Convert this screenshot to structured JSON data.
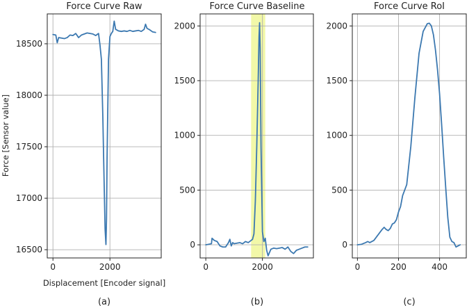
{
  "chart_data": [
    {
      "type": "line",
      "title": "Force Curve Raw",
      "xlabel": "Displacement [Encoder signal]",
      "ylabel": "Force [Sensor value]",
      "caption": "(a)",
      "xlim": [
        -200,
        3800
      ],
      "ylim": [
        16420,
        18790
      ],
      "xticks": [
        0,
        2000
      ],
      "yticks": [
        16500,
        17000,
        17500,
        18000,
        18500
      ],
      "grid": true,
      "series": [
        {
          "color": "#3b78b0",
          "x": [
            0,
            100,
            150,
            200,
            300,
            400,
            500,
            600,
            700,
            800,
            900,
            1000,
            1100,
            1200,
            1300,
            1400,
            1500,
            1600,
            1650,
            1700,
            1750,
            1800,
            1830,
            1860,
            1880,
            1900,
            1950,
            2000,
            2050,
            2100,
            2150,
            2200,
            2300,
            2400,
            2500,
            2600,
            2700,
            2800,
            2900,
            3000,
            3100,
            3200,
            3250,
            3300,
            3400,
            3500,
            3600
          ],
          "y": [
            18590,
            18585,
            18510,
            18560,
            18555,
            18550,
            18560,
            18585,
            18580,
            18600,
            18560,
            18585,
            18595,
            18605,
            18600,
            18595,
            18580,
            18600,
            18490,
            18350,
            17800,
            17100,
            16700,
            16550,
            16800,
            17400,
            18350,
            18570,
            18600,
            18620,
            18720,
            18640,
            18625,
            18620,
            18625,
            18620,
            18630,
            18620,
            18625,
            18630,
            18620,
            18640,
            18690,
            18650,
            18635,
            18615,
            18610
          ]
        }
      ]
    },
    {
      "type": "line",
      "title": "Force Curve Baseline",
      "caption": "(b)",
      "xlim": [
        -200,
        3800
      ],
      "ylim": [
        -120,
        2110
      ],
      "xticks": [
        0,
        2000
      ],
      "yticks": [
        0,
        500,
        1000,
        1500,
        2000
      ],
      "grid": true,
      "highlight_range": [
        1600,
        2100
      ],
      "highlight_color": "#f1f79e",
      "series": [
        {
          "color": "#3b78b0",
          "x": [
            0,
            100,
            200,
            220,
            300,
            400,
            500,
            600,
            700,
            800,
            850,
            900,
            950,
            1000,
            1100,
            1200,
            1300,
            1400,
            1500,
            1600,
            1650,
            1700,
            1750,
            1800,
            1850,
            1880,
            1900,
            1920,
            1950,
            2000,
            2050,
            2100,
            2150,
            2200,
            2300,
            2400,
            2500,
            2600,
            2700,
            2800,
            2900,
            3000,
            3100,
            3200,
            3300,
            3400,
            3500,
            3600
          ],
          "y": [
            0,
            5,
            10,
            60,
            40,
            30,
            -10,
            -20,
            -20,
            20,
            50,
            -10,
            20,
            10,
            15,
            20,
            10,
            30,
            20,
            40,
            50,
            100,
            400,
            900,
            1500,
            1900,
            2030,
            1800,
            900,
            120,
            30,
            60,
            -50,
            -100,
            -40,
            -30,
            -35,
            -30,
            -25,
            -40,
            -20,
            -60,
            -80,
            -50,
            -40,
            -30,
            -20,
            -20
          ]
        }
      ]
    },
    {
      "type": "line",
      "title": "Force Curve RoI",
      "caption": "(c)",
      "xlim": [
        -25,
        530
      ],
      "ylim": [
        -120,
        2110
      ],
      "xticks": [
        0,
        200,
        400
      ],
      "yticks": [
        0,
        500,
        1000,
        1500,
        2000
      ],
      "grid": true,
      "series": [
        {
          "color": "#3b78b0",
          "x": [
            0,
            20,
            40,
            50,
            60,
            80,
            100,
            120,
            130,
            140,
            150,
            160,
            170,
            180,
            190,
            200,
            210,
            220,
            240,
            260,
            280,
            300,
            320,
            340,
            350,
            360,
            370,
            380,
            390,
            400,
            410,
            420,
            430,
            440,
            450,
            460,
            470,
            480,
            490,
            500
          ],
          "y": [
            0,
            5,
            20,
            30,
            20,
            40,
            90,
            140,
            160,
            140,
            130,
            150,
            190,
            200,
            230,
            300,
            350,
            450,
            550,
            900,
            1350,
            1750,
            1950,
            2020,
            2025,
            2000,
            1920,
            1780,
            1600,
            1380,
            1100,
            800,
            520,
            250,
            70,
            30,
            20,
            -20,
            -10,
            0
          ]
        }
      ]
    }
  ]
}
